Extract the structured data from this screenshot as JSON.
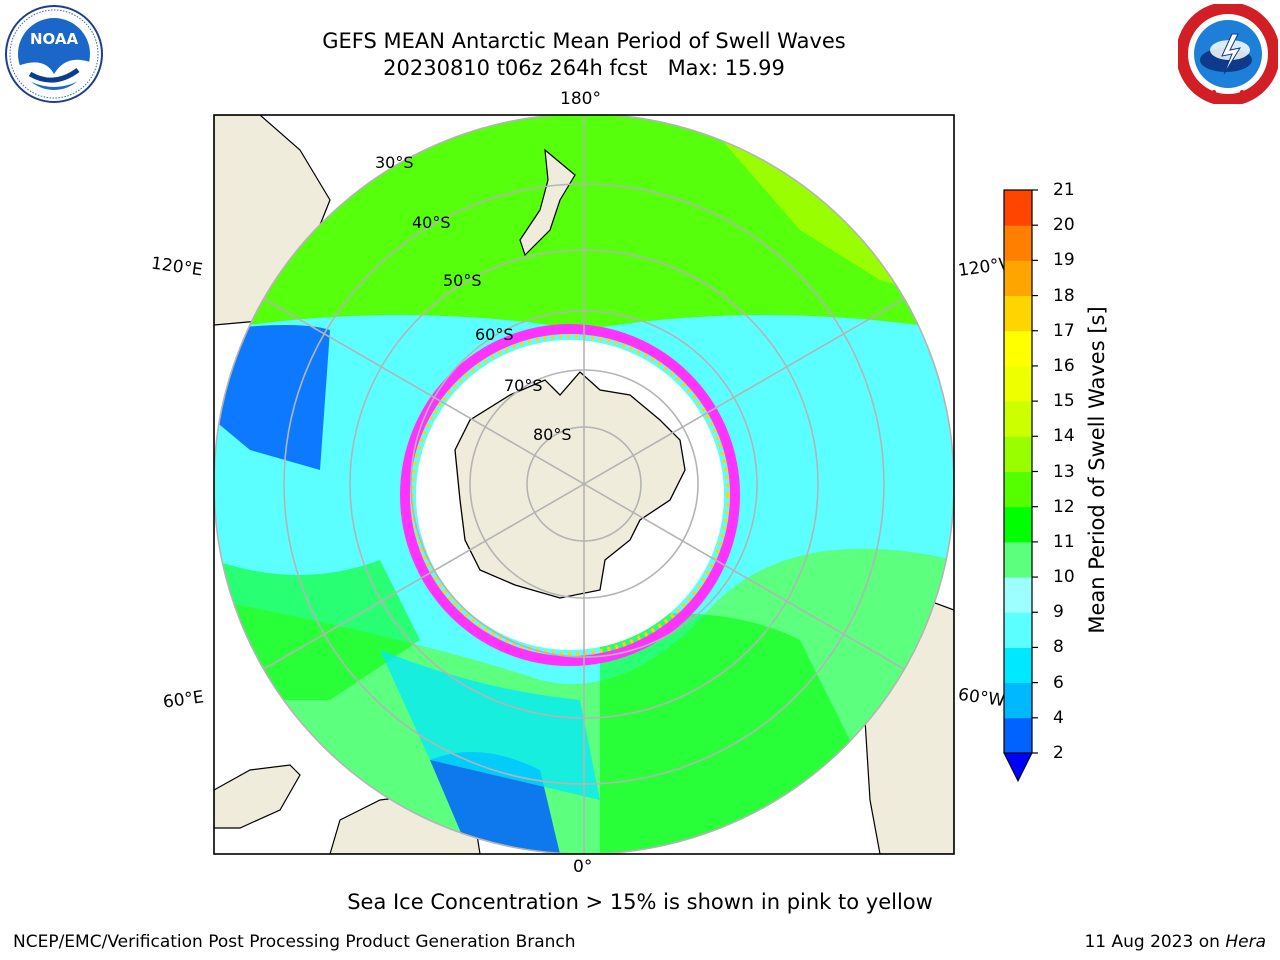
{
  "header": {
    "title_line1": "GEFS MEAN Antarctic Mean Period of Swell Waves",
    "title_line2": "20230810 t06z 264h fcst   Max: 15.99"
  },
  "logos": {
    "left": {
      "name": "NOAA",
      "ring_text": "NATIONAL OCEANIC AND ATMOSPHERIC ADMINISTRATION · U.S. DEPARTMENT OF COMMERCE"
    },
    "right": {
      "name": "NATIONAL WEATHER SERVICE"
    }
  },
  "map": {
    "projection": "south polar stereographic",
    "longitude_labels": {
      "top": "180°",
      "bottom": "0°",
      "upper_left": "120°E",
      "upper_right": "120°W",
      "lower_left": "60°E",
      "lower_right": "60°W"
    },
    "latitude_labels": [
      "30°S",
      "40°S",
      "50°S",
      "60°S",
      "70°S",
      "80°S"
    ],
    "colors": {
      "land": "#efecdc",
      "coast": "#000000",
      "grid": "#b4b4b4",
      "sea_ice": "#ff33ff",
      "no_data": "#ffffff"
    }
  },
  "colorbar": {
    "title": "Mean Period of Swell Waves [s]",
    "ticks": [
      "2",
      "4",
      "6",
      "8",
      "9",
      "10",
      "11",
      "12",
      "13",
      "14",
      "15",
      "16",
      "17",
      "18",
      "19",
      "20",
      "21"
    ],
    "colors": [
      "#0062ff",
      "#00b8ff",
      "#00e8ff",
      "#5bffff",
      "#9dffff",
      "#5cff7e",
      "#00ff00",
      "#55ff00",
      "#99ff00",
      "#ccff00",
      "#eeff00",
      "#ffff00",
      "#ffd500",
      "#ffa500",
      "#ff7f00",
      "#ff4500",
      "#ff0000"
    ],
    "under_color": "#0000ff"
  },
  "notes": {
    "sea_ice": "Sea Ice Concentration > 15% is shown in pink to yellow"
  },
  "footer": {
    "left": "NCEP/EMC/Verification Post Processing Product Generation Branch",
    "date": "11 Aug 2023 on",
    "machine": "Hera"
  }
}
